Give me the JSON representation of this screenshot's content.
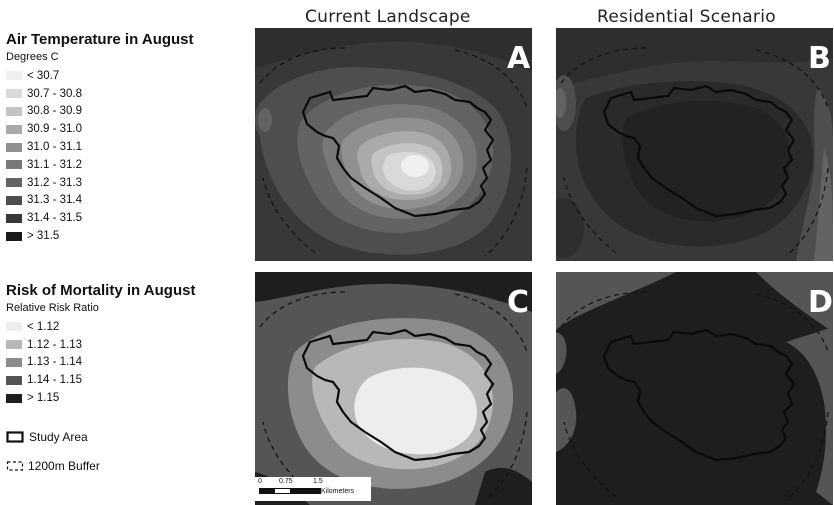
{
  "titles": {
    "current": "Current Landscape",
    "residential": "Residential Scenario"
  },
  "temperature_legend": {
    "title": "Air Temperature in August",
    "unit": "Degrees C",
    "classes": [
      {
        "label": "< 30.7",
        "color": "#f0f0f0"
      },
      {
        "label": "30.7 - 30.8",
        "color": "#d9d9d9"
      },
      {
        "label": "30.8 - 30.9",
        "color": "#c4c4c4"
      },
      {
        "label": "30.9 - 31.0",
        "color": "#aaaaaa"
      },
      {
        "label": "31.0 - 31.1",
        "color": "#909090"
      },
      {
        "label": "31.1 - 31.2",
        "color": "#787878"
      },
      {
        "label": "31.2 - 31.3",
        "color": "#636363"
      },
      {
        "label": "31.3 - 31.4",
        "color": "#4e4e4e"
      },
      {
        "label": "31.4 - 31.5",
        "color": "#383838"
      },
      {
        "label": "> 31.5",
        "color": "#1a1a1a"
      }
    ]
  },
  "mortality_legend": {
    "title": "Risk of Mortality in August",
    "unit": "Relative Risk Ratio",
    "classes": [
      {
        "label": "< 1.12",
        "color": "#ededed"
      },
      {
        "label": "1.12 - 1.13",
        "color": "#b8b8b8"
      },
      {
        "label": "1.13 - 1.14",
        "color": "#8c8c8c"
      },
      {
        "label": "1.14 - 1.15",
        "color": "#555555"
      },
      {
        "label": "> 1.15",
        "color": "#1e1e1e"
      }
    ]
  },
  "keys": {
    "study_area": "Study Area",
    "buffer": "1200m Buffer"
  },
  "panels": {
    "a": "A",
    "b": "B",
    "c": "C",
    "d": "D"
  },
  "scale": {
    "ticks": [
      "0",
      "0.75",
      "1.5"
    ],
    "unit": "Kilometers"
  }
}
